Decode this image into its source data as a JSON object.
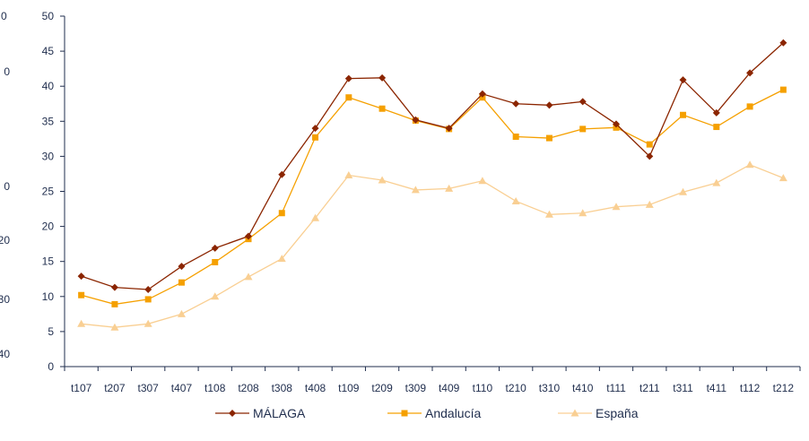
{
  "chart_data": {
    "type": "line",
    "categories": [
      "t107",
      "t207",
      "t307",
      "t407",
      "t108",
      "t208",
      "t308",
      "t408",
      "t109",
      "t209",
      "t309",
      "t409",
      "t110",
      "t210",
      "t310",
      "t410",
      "t111",
      "t211",
      "t311",
      "t411",
      "t112",
      "t212"
    ],
    "ylim": [
      0,
      50
    ],
    "yticks": [
      "0",
      "5",
      "10",
      "15",
      "20",
      "25",
      "30",
      "35",
      "40",
      "45",
      "50"
    ],
    "legend_position": "bottom",
    "grid": false,
    "series": [
      {
        "name": "MÁLAGA",
        "color": "#8b2500",
        "marker": "diamond",
        "values": [
          12.9,
          11.3,
          11.0,
          14.3,
          16.9,
          18.6,
          27.4,
          34.0,
          41.1,
          41.2,
          35.2,
          34.0,
          38.9,
          37.5,
          37.3,
          37.8,
          34.6,
          30.0,
          40.9,
          36.2,
          41.9,
          46.2
        ]
      },
      {
        "name": "Andalucía",
        "color": "#f5a000",
        "marker": "square",
        "values": [
          10.2,
          8.9,
          9.6,
          12.0,
          14.9,
          18.2,
          21.9,
          32.7,
          38.4,
          36.8,
          35.1,
          33.9,
          38.4,
          32.8,
          32.6,
          33.9,
          34.1,
          31.7,
          35.9,
          34.2,
          37.1,
          39.5
        ]
      },
      {
        "name": "España",
        "color": "#f9cf93",
        "marker": "triangle",
        "values": [
          6.1,
          5.6,
          6.1,
          7.5,
          10.0,
          12.8,
          15.4,
          21.2,
          27.3,
          26.6,
          25.2,
          25.4,
          26.5,
          23.6,
          21.7,
          21.9,
          22.8,
          23.1,
          24.9,
          26.2,
          28.8,
          26.9
        ]
      }
    ],
    "edge_labels": [
      "0",
      "0",
      "0",
      "20",
      "30",
      "40"
    ]
  }
}
